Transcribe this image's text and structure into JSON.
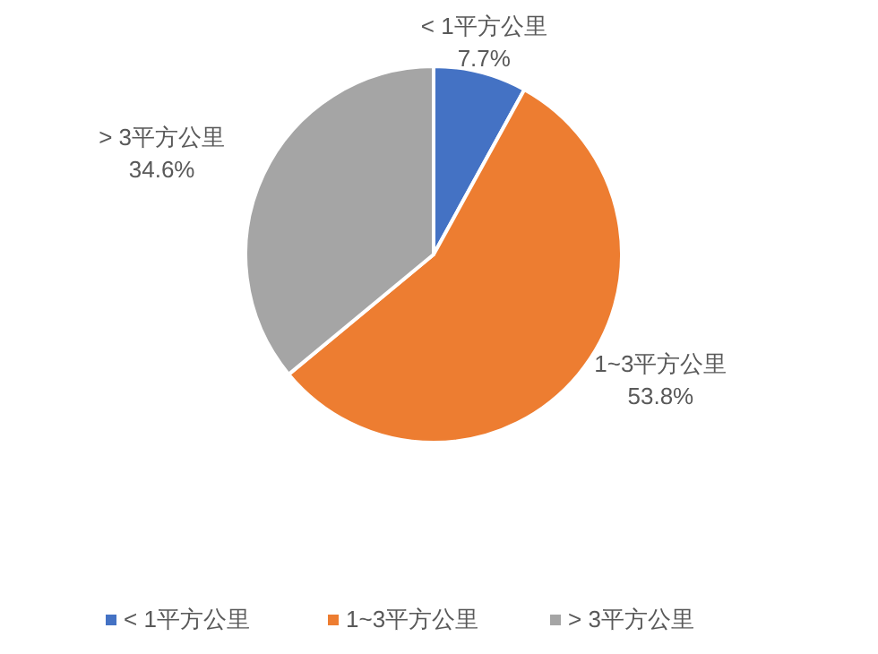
{
  "chart_data": {
    "type": "pie",
    "categories": [
      "< 1平方公里",
      "1~3平方公里",
      "> 3平方公里"
    ],
    "values": [
      7.7,
      53.8,
      34.6
    ],
    "colors": [
      "#4472c4",
      "#ed7d31",
      "#a5a5a5"
    ],
    "value_labels": [
      "7.7%",
      "53.8%",
      "34.6%"
    ],
    "legend": "bottom"
  }
}
